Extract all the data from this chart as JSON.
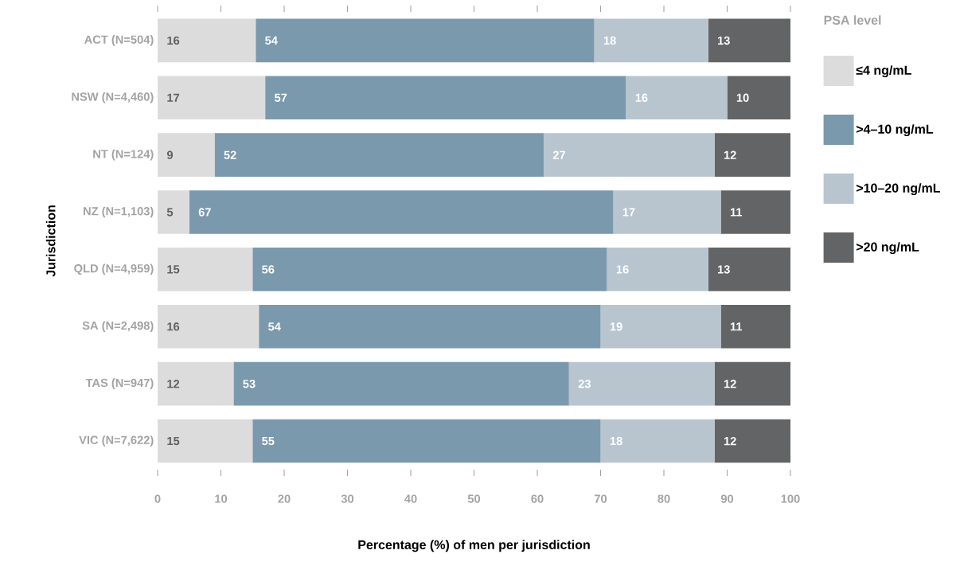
{
  "chart_data": {
    "type": "bar",
    "orientation": "horizontal",
    "stacked": true,
    "categories": [
      "ACT (N=504)",
      "NSW (N=4,460)",
      "NT (N=124)",
      "NZ (N=1,103)",
      "QLD (N=4,959)",
      "SA (N=2,498)",
      "TAS (N=947)",
      "VIC (N=7,622)"
    ],
    "series": [
      {
        "name": "≤4 ng/mL",
        "color": "#dcdcdd",
        "values": [
          15.5,
          17,
          9,
          5,
          15,
          16,
          12,
          15
        ],
        "value_labels": [
          "16",
          "17",
          "9",
          "5",
          "15",
          "16",
          "12",
          "15"
        ]
      },
      {
        "name": ">4–10 ng/mL",
        "color": "#7a99ad",
        "values": [
          53.5,
          57,
          52,
          67,
          56,
          54,
          53,
          55
        ],
        "value_labels": [
          "54",
          "57",
          "52",
          "67",
          "56",
          "54",
          "53",
          "55"
        ]
      },
      {
        "name": ">10–20 ng/mL",
        "color": "#b8c5cf",
        "values": [
          18,
          16,
          27,
          17,
          16,
          19,
          23,
          18
        ],
        "value_labels": [
          "18",
          "16",
          "27",
          "17",
          "16",
          "19",
          "23",
          "18"
        ]
      },
      {
        "name": ">20 ng/mL",
        "color": "#636466",
        "values": [
          13,
          10,
          12,
          11,
          13,
          11,
          12,
          12
        ],
        "value_labels": [
          "13",
          "10",
          "12",
          "11",
          "13",
          "11",
          "12",
          "12"
        ]
      }
    ],
    "xlim": [
      0,
      100
    ],
    "xticks": [
      0,
      10,
      20,
      30,
      40,
      50,
      60,
      70,
      80,
      90,
      100
    ],
    "xlabel": "Percentage (%) of men per jurisdiction",
    "ylabel": "Jurisdiction",
    "legend_title": "PSA level",
    "legend": "top right",
    "grid": false
  }
}
